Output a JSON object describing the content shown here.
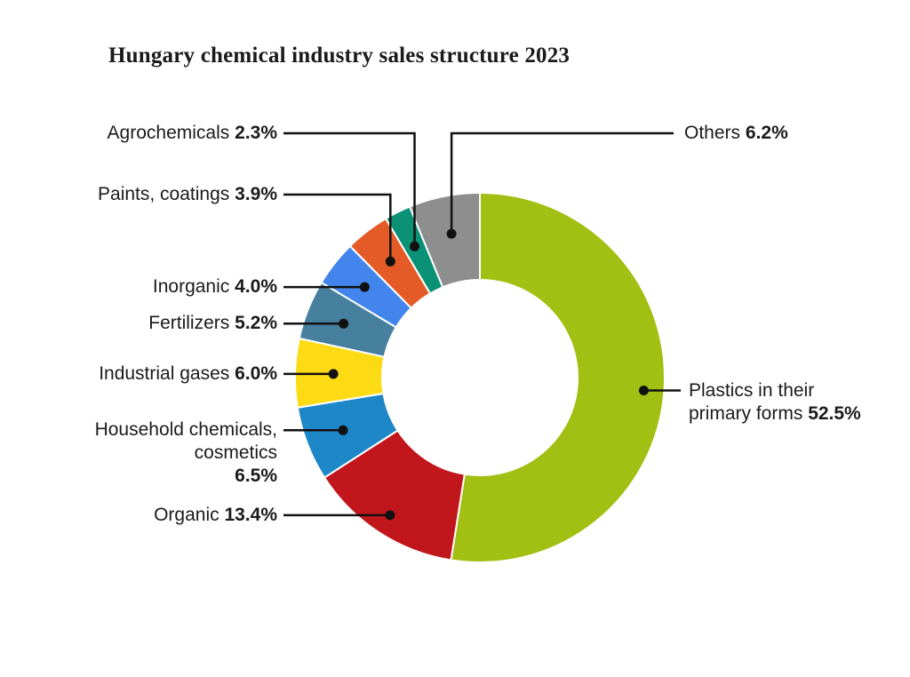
{
  "title": "Hungary chemical industry sales structure 2023",
  "chart_data": {
    "type": "pie",
    "subtype": "donut",
    "title": "Hungary chemical industry sales structure 2023",
    "unit": "percent",
    "start_angle_deg": 0,
    "direction": "clockwise",
    "legend": "callout-labels",
    "background_color": "#ffffff",
    "leader_line_color": "#111111",
    "segments": [
      {
        "id": "plastics",
        "label": "Plastics in their primary forms",
        "value": 52.5,
        "pct": "52.5%",
        "color": "#a2c014"
      },
      {
        "id": "organic",
        "label": "Organic",
        "value": 13.4,
        "pct": "13.4%",
        "color": "#c1161c"
      },
      {
        "id": "household",
        "label": "Household chemicals, cosmetics",
        "value": 6.5,
        "pct": "6.5%",
        "color": "#1d87c8"
      },
      {
        "id": "industrial-gases",
        "label": "Industrial gases",
        "value": 6.0,
        "pct": "6.0%",
        "color": "#fcdb15"
      },
      {
        "id": "fertilizers",
        "label": "Fertilizers",
        "value": 5.2,
        "pct": "5.2%",
        "color": "#47809e"
      },
      {
        "id": "inorganic",
        "label": "Inorganic",
        "value": 4.0,
        "pct": "4.0%",
        "color": "#4285ec"
      },
      {
        "id": "paints",
        "label": "Paints, coatings",
        "value": 3.9,
        "pct": "3.9%",
        "color": "#e55b28"
      },
      {
        "id": "agrochemicals",
        "label": "Agrochemicals",
        "value": 2.3,
        "pct": "2.3%",
        "color": "#0b9276"
      },
      {
        "id": "others",
        "label": "Others",
        "value": 6.2,
        "pct": "6.2%",
        "color": "#8e8e8e"
      }
    ]
  }
}
